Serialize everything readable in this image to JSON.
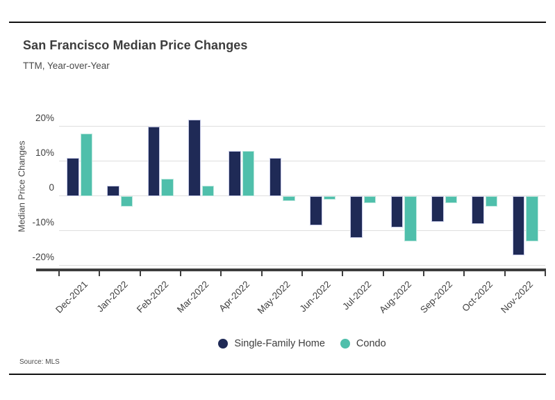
{
  "header": {
    "title": "San Francisco Median Price Changes",
    "subtitle": "TTM, Year-over-Year"
  },
  "source_note": "Source: MLS",
  "colors": {
    "single_family_home": "#1f2a56",
    "condo": "#4fbfab",
    "axis_line": "#3d3d3d",
    "gridline": "#dedede",
    "border_rule": "#111111",
    "text": "#3d3d3d"
  },
  "chart_data": {
    "type": "bar",
    "title": "San Francisco Median Price Changes",
    "subtitle": "TTM, Year-over-Year",
    "xlabel": "",
    "ylabel": "Median Price Changes",
    "categories": [
      "Dec-2021",
      "Jan-2022",
      "Feb-2022",
      "Mar-2022",
      "Apr-2022",
      "May-2022",
      "Jun-2022",
      "Jul-2022",
      "Aug-2022",
      "Sep-2022",
      "Oct-2022",
      "Nov-2022"
    ],
    "series": [
      {
        "name": "Single-Family Home",
        "color": "#1f2a56",
        "edge": "#c7cbe8",
        "values": [
          11,
          3,
          20,
          22,
          13,
          11,
          -8.5,
          -12,
          -9,
          -7.5,
          -8,
          -17
        ]
      },
      {
        "name": "Condo",
        "color": "#4fbfab",
        "edge": "#bce8de",
        "values": [
          18,
          -3,
          5,
          3,
          13,
          -1.5,
          -1,
          -2,
          -13,
          -2,
          -3,
          -13
        ]
      }
    ],
    "yticks": [
      {
        "value": 20,
        "label": "20%"
      },
      {
        "value": 10,
        "label": "10%"
      },
      {
        "value": 0,
        "label": "0"
      },
      {
        "value": -10,
        "label": "-10%"
      },
      {
        "value": -20,
        "label": "-20%"
      }
    ],
    "ylim": [
      -21,
      23
    ],
    "grid": true,
    "legend_position": "bottom"
  }
}
